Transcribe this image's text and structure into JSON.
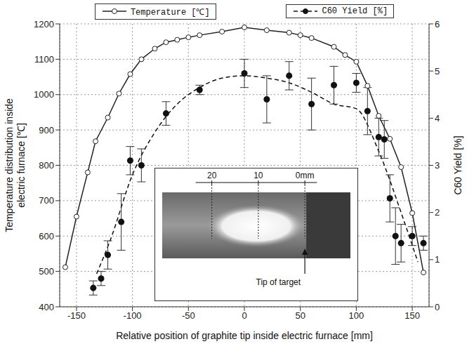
{
  "chart_data": {
    "type": "line",
    "xlabel": "Relative position of graphite tip inside electric furnace [mm]",
    "ylabel": "Temperature distribution inside electric furnace [℃]",
    "y2label": "C60 Yield [%]",
    "xlim": [
      -165,
      165
    ],
    "xticks": [
      -150,
      -100,
      -50,
      0,
      50,
      100,
      150
    ],
    "ylim": [
      400,
      1200
    ],
    "yticks": [
      400,
      500,
      600,
      700,
      800,
      900,
      1000,
      1100,
      1200
    ],
    "y2lim": [
      0,
      6
    ],
    "y2ticks": [
      0,
      1,
      2,
      3,
      4,
      5,
      6
    ],
    "grid": true,
    "legend": "top",
    "annotations": [
      "20",
      "10",
      "0mm",
      "Tip of target"
    ],
    "series": [
      {
        "name": "Temperature [℃]",
        "type": "line",
        "color": "#222222",
        "marker": "open_circle",
        "line_style": "solid",
        "x": [
          -160,
          -150,
          -140,
          -133,
          -122,
          -112,
          -102,
          -92,
          -80,
          -70,
          -60,
          -50,
          -40,
          -20,
          0,
          20,
          40,
          50,
          60,
          80,
          90,
          100,
          110,
          120,
          130,
          140,
          150,
          160
        ],
        "values": [
          512,
          655,
          780,
          868,
          935,
          1003,
          1058,
          1100,
          1130,
          1148,
          1155,
          1162,
          1168,
          1178,
          1190,
          1182,
          1175,
          1168,
          1160,
          1135,
          1112,
          1093,
          1025,
          940,
          875,
          795,
          665,
          497
        ]
      },
      {
        "name": "C60 Yield [%]",
        "type": "scatter",
        "axis": "y2",
        "color": "#111111",
        "marker": "circle",
        "line_style": "dashed",
        "x": [
          -135,
          -128,
          -122,
          -110,
          -102,
          -92,
          -70,
          -40,
          0,
          20,
          40,
          60,
          80,
          100,
          110,
          120,
          125,
          130,
          135,
          140,
          150,
          160
        ],
        "values": [
          0.4,
          0.6,
          1.1,
          1.8,
          3.1,
          3.0,
          4.1,
          4.6,
          4.95,
          4.4,
          4.9,
          4.3,
          4.7,
          4.75,
          4.15,
          3.6,
          3.55,
          2.3,
          1.5,
          1.35,
          1.5,
          1.35
        ],
        "error": [
          0.15,
          0.15,
          0.3,
          0.6,
          0.3,
          0.35,
          0.25,
          0.1,
          0.3,
          0.5,
          0.3,
          0.55,
          0.4,
          0.2,
          0.5,
          0.4,
          0.4,
          0.5,
          0.6,
          0.4,
          0.2,
          0.15
        ],
        "fit_x": [
          -132,
          -120,
          -100,
          -80,
          -60,
          -40,
          -20,
          0,
          20,
          40,
          60,
          80,
          100,
          120,
          140,
          155
        ],
        "fit_values": [
          0.7,
          1.4,
          2.8,
          3.7,
          4.3,
          4.65,
          4.85,
          4.9,
          4.85,
          4.75,
          4.55,
          4.3,
          4.2,
          3.3,
          2.0,
          0.95
        ]
      }
    ]
  }
}
